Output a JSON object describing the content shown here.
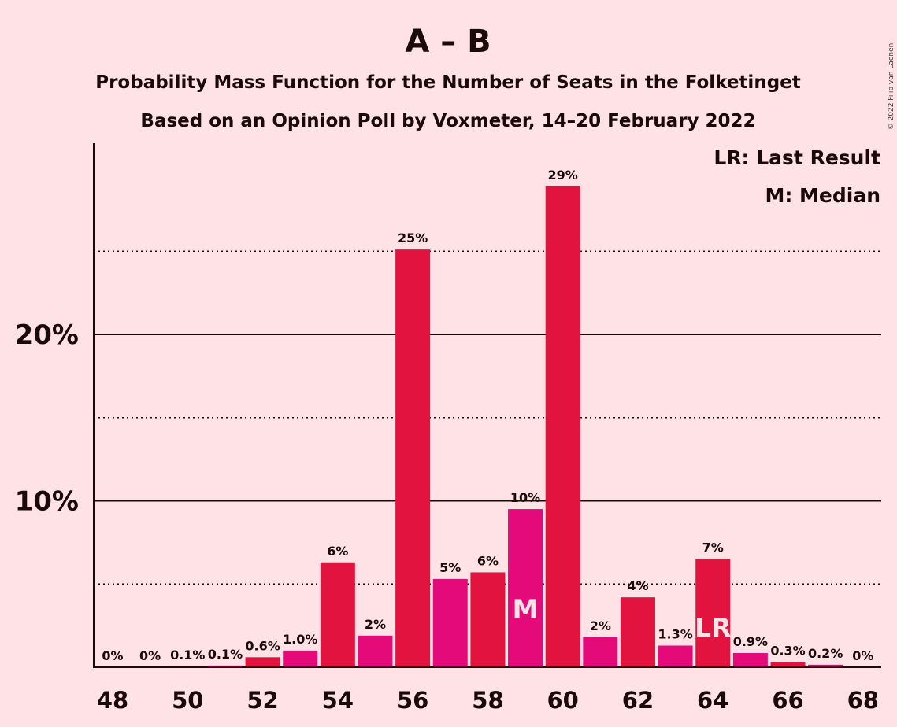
{
  "copyright": "© 2022 Filip van Laenen",
  "chart_data": {
    "type": "bar",
    "title": "A – B",
    "subtitle": "Probability Mass Function for the Number of Seats in the Folketinget",
    "subtitle2": "Based on an Opinion Poll by Voxmeter, 14–20 February 2022",
    "legend": [
      "LR: Last Result",
      "M: Median"
    ],
    "xlabel": "",
    "ylabel": "",
    "ylim": [
      0,
      31.5
    ],
    "y_ticks": [
      {
        "value": 10,
        "label": "10%"
      },
      {
        "value": 20,
        "label": "20%"
      }
    ],
    "y_minor_gridlines": [
      5,
      15,
      25
    ],
    "x_ticks": [
      48,
      50,
      52,
      54,
      56,
      58,
      60,
      62,
      64,
      66,
      68
    ],
    "seats": [
      48,
      49,
      50,
      51,
      52,
      53,
      54,
      55,
      56,
      57,
      58,
      59,
      60,
      61,
      62,
      63,
      64,
      65,
      66,
      67,
      68
    ],
    "values": [
      0,
      0,
      0.05,
      0.1,
      0.6,
      1.0,
      6.3,
      1.9,
      25.1,
      5.3,
      5.7,
      9.5,
      28.9,
      1.8,
      4.2,
      1.3,
      6.5,
      0.85,
      0.3,
      0.15,
      0
    ],
    "labels": [
      "0%",
      "0%",
      "0.1%",
      "0.1%",
      "0.6%",
      "1.0%",
      "6%",
      "2%",
      "25%",
      "5%",
      "6%",
      "10%",
      "29%",
      "2%",
      "4%",
      "1.3%",
      "7%",
      "0.9%",
      "0.3%",
      "0.2%",
      "0%"
    ],
    "median_seat": 59,
    "median_marker": "M",
    "last_result_seat": 64,
    "last_result_marker": "LR",
    "colors": {
      "background": "#FFE2E6",
      "bar_primary": "#E2133F",
      "bar_secondary": "#E40A7A",
      "text": "#1a0a0a"
    }
  }
}
